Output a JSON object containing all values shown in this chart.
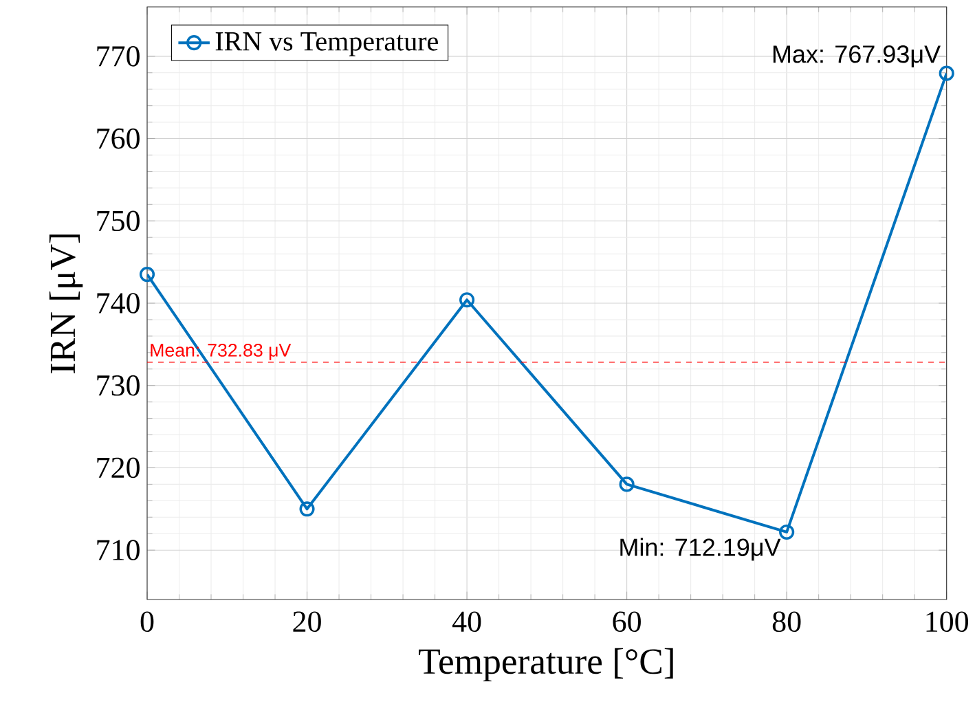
{
  "chart_data": {
    "type": "line",
    "xlabel": "Temperature [°C]",
    "ylabel": "IRN [μV]",
    "x": [
      0,
      20,
      40,
      60,
      80,
      100
    ],
    "series": [
      {
        "name": "IRN vs Temperature",
        "color": "#0072bd",
        "values": [
          743.5,
          715,
          740.4,
          718,
          712.19,
          767.93
        ]
      }
    ],
    "xlim": [
      0,
      100
    ],
    "ylim": [
      704,
      776
    ],
    "xticks": [
      0,
      20,
      40,
      60,
      80,
      100
    ],
    "yticks": [
      710,
      720,
      730,
      740,
      750,
      760,
      770
    ],
    "grid": true,
    "legend": "top left",
    "marker": "circle",
    "line_style": "solid",
    "ref_lines": [
      {
        "axis": "y",
        "value": 732.83,
        "label": "Mean: 732.83 μV",
        "color": "#ff0000",
        "line_style": "dashed"
      }
    ],
    "annotations": [
      {
        "text": "Max: 767.93μV",
        "x": 100,
        "y": 767.93
      },
      {
        "text": "Min: 712.19μV",
        "x": 80,
        "y": 712.19
      }
    ]
  }
}
